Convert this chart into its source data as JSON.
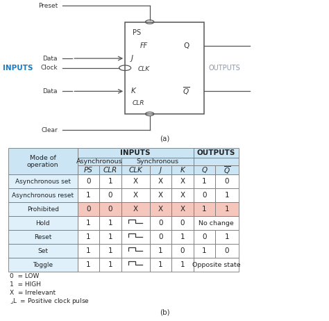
{
  "title_b": "(b)",
  "title_a": "(a)",
  "fig_bg": "#ffffff",
  "table_header_bg": "#cce5f5",
  "table_row_bg": "#dff0fa",
  "table_prohibited_bg": "#f5c6bc",
  "table_white_bg": "#ffffff",
  "table_border": "#888888",
  "inputs_color": "#1a7abf",
  "outputs_color": "#8a9aaa",
  "legend_lines": [
    "0  = LOW",
    "1  = HIGH",
    "X  = Irrelevant",
    "⌟L  = Positive clock pulse"
  ],
  "rows": [
    {
      "label": "Asynchronous set",
      "ps": "0",
      "clr": "1",
      "clk": "X",
      "j": "X",
      "k": "X",
      "q": "1",
      "qbar": "0",
      "highlight": false,
      "output_span": false,
      "output_text": ""
    },
    {
      "label": "Asynchronous reset",
      "ps": "1",
      "clr": "0",
      "clk": "X",
      "j": "X",
      "k": "X",
      "q": "0",
      "qbar": "1",
      "highlight": false,
      "output_span": false,
      "output_text": ""
    },
    {
      "label": "Prohibited",
      "ps": "0",
      "clr": "0",
      "clk": "X",
      "j": "X",
      "k": "X",
      "q": "1",
      "qbar": "1",
      "highlight": true,
      "output_span": false,
      "output_text": ""
    },
    {
      "label": "Hold",
      "ps": "1",
      "clr": "1",
      "clk": "clk",
      "j": "0",
      "k": "0",
      "q": "",
      "qbar": "",
      "highlight": false,
      "output_span": true,
      "output_text": "No change"
    },
    {
      "label": "Reset",
      "ps": "1",
      "clr": "1",
      "clk": "clk",
      "j": "0",
      "k": "1",
      "q": "0",
      "qbar": "1",
      "highlight": false,
      "output_span": false,
      "output_text": ""
    },
    {
      "label": "Set",
      "ps": "1",
      "clr": "1",
      "clk": "clk",
      "j": "1",
      "k": "0",
      "q": "1",
      "qbar": "0",
      "highlight": false,
      "output_span": false,
      "output_text": ""
    },
    {
      "label": "Toggle",
      "ps": "1",
      "clr": "1",
      "clk": "clk",
      "j": "1",
      "k": "1",
      "q": "",
      "qbar": "",
      "highlight": false,
      "output_span": true,
      "output_text": "Opposite state"
    }
  ]
}
